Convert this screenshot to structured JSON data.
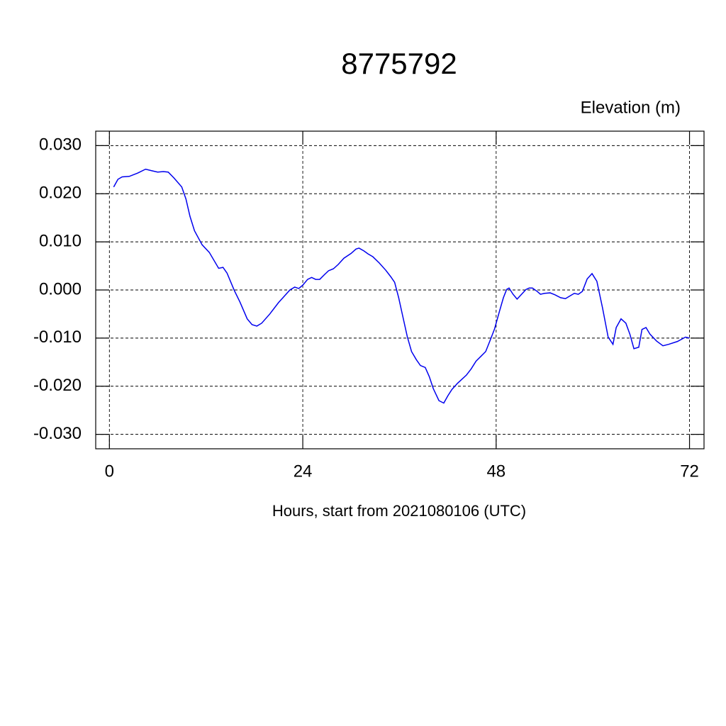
{
  "chart_data": {
    "type": "line",
    "title": "8775792",
    "subtitle": "Elevation (m)",
    "xlabel": "Hours, start from 2021080106 (UTC)",
    "xlim": [
      -1.7,
      73.8
    ],
    "ylim": [
      -0.033,
      0.033
    ],
    "xticks": [
      0,
      24,
      48,
      72
    ],
    "yticks": [
      {
        "value": -0.03,
        "label": "-0.030"
      },
      {
        "value": -0.02,
        "label": "-0.020"
      },
      {
        "value": -0.01,
        "label": "-0.010"
      },
      {
        "value": 0,
        "label": "0.000"
      },
      {
        "value": 0.01,
        "label": "0.010"
      },
      {
        "value": 0.02,
        "label": "0.020"
      },
      {
        "value": 0.03,
        "label": "0.030"
      }
    ],
    "grid": true,
    "series": [
      {
        "color": "#0000ee",
        "x": [
          0.53,
          1.06,
          1.58,
          2.46,
          3.52,
          4.49,
          5.19,
          5.99,
          6.69,
          7.3,
          8.0,
          8.98,
          9.5,
          10.0,
          10.56,
          11.5,
          12.4,
          13.56,
          14.1,
          14.6,
          15.5,
          16.2,
          17.1,
          17.7,
          18.3,
          18.9,
          19.9,
          21.0,
          21.6,
          22.4,
          23.0,
          23.5,
          24.0,
          24.6,
          25.1,
          25.6,
          26.1,
          26.7,
          27.2,
          27.8,
          28.4,
          29.1,
          30.0,
          30.6,
          30.98,
          31.6,
          32.1,
          32.7,
          33.5,
          34.3,
          34.9,
          35.4,
          35.9,
          36.4,
          36.97,
          37.5,
          38.1,
          38.6,
          39.2,
          39.7,
          40.2,
          40.9,
          41.5,
          42.0,
          42.5,
          43.2,
          44.3,
          44.9,
          45.5,
          46.1,
          46.7,
          47.2,
          47.8,
          48.4,
          48.9,
          49.3,
          49.6,
          50.1,
          50.6,
          51.1,
          51.7,
          52.1,
          52.5,
          53.1,
          53.5,
          54.0,
          54.7,
          55.3,
          56.0,
          56.6,
          57.2,
          57.7,
          58.2,
          58.7,
          59.3,
          59.9,
          60.5,
          61.2,
          61.9,
          62.5,
          62.9,
          63.5,
          64.1,
          64.6,
          65.1,
          65.7,
          66.1,
          66.6,
          67.1,
          67.9,
          68.7,
          69.4,
          70.5,
          71.5,
          72.0
        ],
        "values": [
          0.0214,
          0.023,
          0.0235,
          0.0236,
          0.0243,
          0.0251,
          0.0248,
          0.0245,
          0.0246,
          0.0245,
          0.0233,
          0.0214,
          0.0189,
          0.0153,
          0.0123,
          0.0094,
          0.0078,
          0.0045,
          0.0047,
          0.0035,
          -0.0001,
          -0.0025,
          -0.006,
          -0.0072,
          -0.0075,
          -0.0069,
          -0.005,
          -0.0026,
          -0.0015,
          0.0,
          0.0006,
          0.0003,
          0.001,
          0.0022,
          0.0026,
          0.0022,
          0.0022,
          0.0032,
          0.004,
          0.0044,
          0.0053,
          0.0066,
          0.0076,
          0.0085,
          0.0087,
          0.0081,
          0.0075,
          0.0069,
          0.0056,
          0.0041,
          0.0028,
          0.0016,
          -0.0016,
          -0.0054,
          -0.0097,
          -0.0128,
          -0.0145,
          -0.0157,
          -0.0161,
          -0.018,
          -0.0205,
          -0.023,
          -0.0235,
          -0.022,
          -0.0207,
          -0.0194,
          -0.0177,
          -0.0164,
          -0.0148,
          -0.0138,
          -0.0128,
          -0.0107,
          -0.0081,
          -0.0045,
          -0.0016,
          0.0001,
          0.0004,
          -0.0009,
          -0.0019,
          -0.001,
          0.0001,
          0.0004,
          0.0004,
          -0.0003,
          -0.0009,
          -0.0007,
          -0.0006,
          -0.001,
          -0.0016,
          -0.0018,
          -0.0012,
          -0.0007,
          -0.0009,
          -0.0003,
          0.0023,
          0.0034,
          0.0018,
          -0.0037,
          -0.0098,
          -0.0113,
          -0.0078,
          -0.006,
          -0.0069,
          -0.0092,
          -0.0122,
          -0.0119,
          -0.0082,
          -0.0078,
          -0.0092,
          -0.0106,
          -0.0116,
          -0.0113,
          -0.0107,
          -0.0098,
          -0.01
        ]
      }
    ]
  }
}
